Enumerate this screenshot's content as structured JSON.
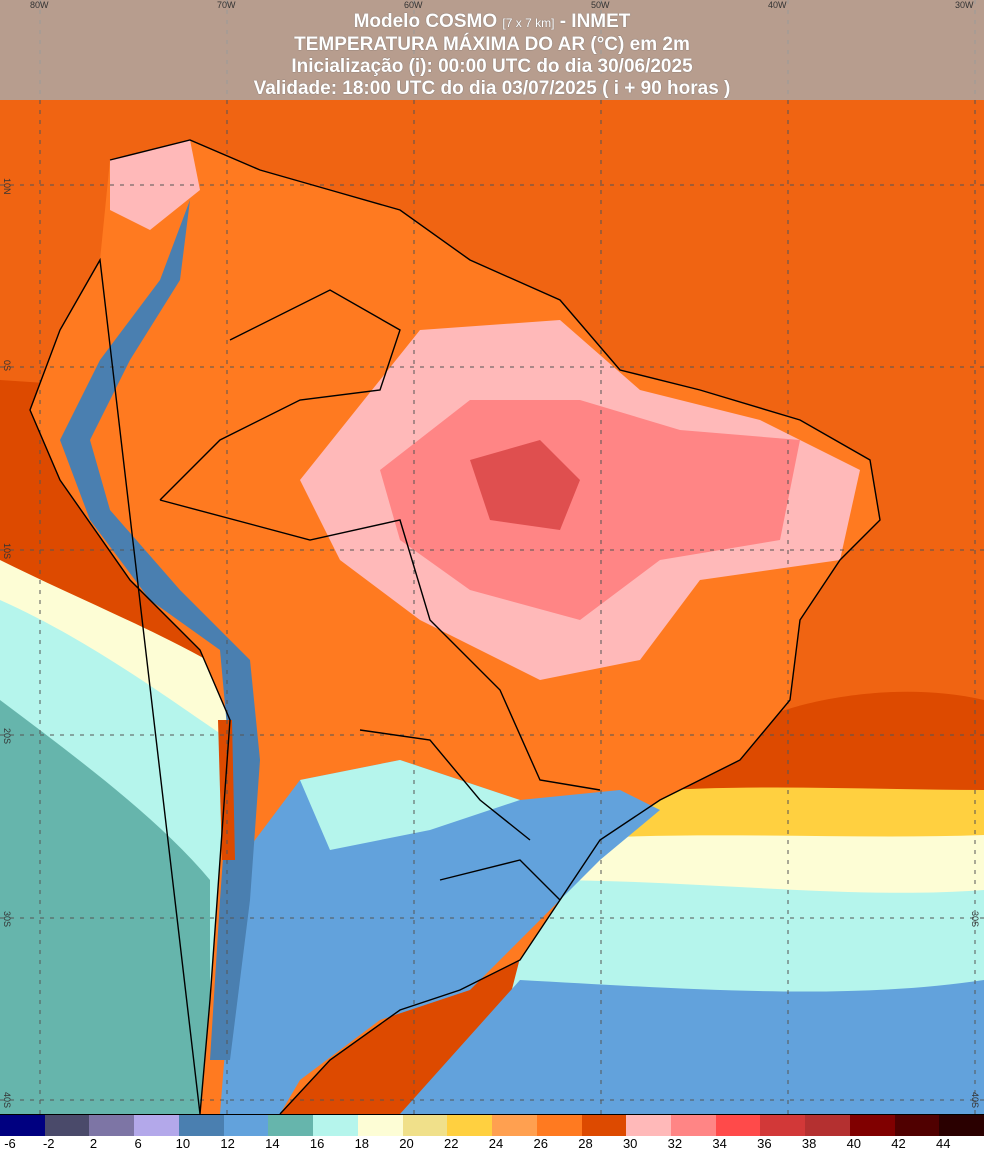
{
  "title": {
    "line1_a": "Modelo COSMO",
    "line1_small": "[7 x 7 km]",
    "line1_b": "- INMET",
    "line2": "TEMPERATURA MÁXIMA DO AR (°C) em 2m",
    "line3": "Inicialização (i): 00:00 UTC do dia 30/06/2025",
    "line4": "Validade: 18:00 UTC do dia 03/07/2025 ( i + 90 horas )"
  },
  "longitude_ticks": [
    "80W",
    "70W",
    "60W",
    "50W",
    "40W",
    "30W"
  ],
  "latitude_ticks": [
    "10N",
    "0S",
    "10S",
    "20S",
    "30S",
    "40S"
  ],
  "colorbar": {
    "labels": [
      "-6",
      "-2",
      "2",
      "6",
      "10",
      "12",
      "14",
      "16",
      "18",
      "20",
      "22",
      "24",
      "26",
      "28",
      "30",
      "32",
      "34",
      "36",
      "38",
      "40",
      "42",
      "44"
    ],
    "colors": [
      "#000080",
      "#4a4a6a",
      "#7d75a5",
      "#b3a8ea",
      "#4a7fb0",
      "#62a2dc",
      "#66b5ac",
      "#b5f5ec",
      "#fdfdd5",
      "#f0e08a",
      "#ffd040",
      "#ffa050",
      "#ff7a20",
      "#dd4a00",
      "#ffb9b9",
      "#ff8585",
      "#ff4a4a",
      "#d23838",
      "#b43030",
      "#800000",
      "#500000",
      "#2a0000"
    ]
  }
}
